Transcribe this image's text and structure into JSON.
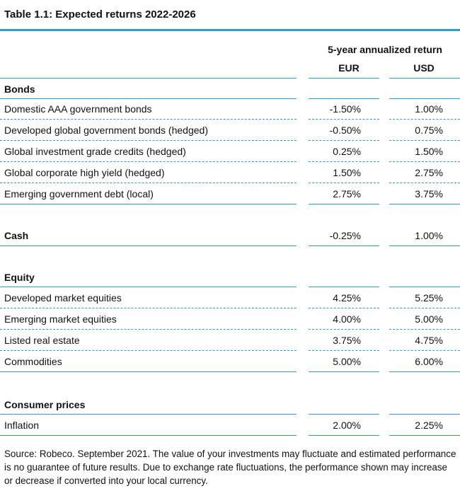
{
  "title": "Table 1.1: Expected returns 2022-2026",
  "header": {
    "span": "5-year annualized return",
    "eur": "EUR",
    "usd": "USD"
  },
  "sections": {
    "bonds": {
      "label": "Bonds",
      "rows": [
        {
          "label": "Domestic AAA government bonds",
          "eur": "-1.50%",
          "usd": "1.00%"
        },
        {
          "label": "Developed global government bonds (hedged)",
          "eur": "-0.50%",
          "usd": "0.75%"
        },
        {
          "label": "Global investment grade credits (hedged)",
          "eur": "0.25%",
          "usd": "1.50%"
        },
        {
          "label": "Global corporate high yield (hedged)",
          "eur": "1.50%",
          "usd": "2.75%"
        },
        {
          "label": "Emerging government debt (local)",
          "eur": "2.75%",
          "usd": "3.75%"
        }
      ]
    },
    "cash": {
      "label": "Cash",
      "eur": "-0.25%",
      "usd": "1.00%"
    },
    "equity": {
      "label": "Equity",
      "rows": [
        {
          "label": "Developed market equities",
          "eur": "4.25%",
          "usd": "5.25%"
        },
        {
          "label": "Emerging market equities",
          "eur": "4.00%",
          "usd": "5.00%"
        },
        {
          "label": "Listed real estate",
          "eur": "3.75%",
          "usd": "4.75%"
        },
        {
          "label": "Commodities",
          "eur": "5.00%",
          "usd": "6.00%"
        }
      ]
    },
    "consumer": {
      "label": "Consumer prices",
      "rows": [
        {
          "label": "Inflation",
          "eur": "2.00%",
          "usd": "2.25%"
        }
      ]
    }
  },
  "footer": "Source: Robeco. September 2021. The value of your investments may fluctuate and estimated performance is no guarantee of future results. Due to exchange rate fluctuations, the performance shown may increase or decrease if converted into your local currency."
}
